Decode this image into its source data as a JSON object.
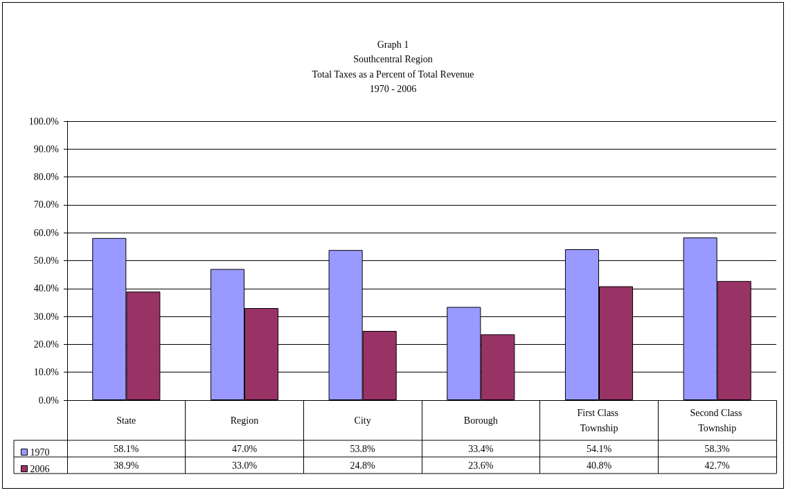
{
  "chart_data": {
    "type": "bar",
    "title": "Graph 1",
    "subtitle": "Southcentral Region\nTotal Taxes as a Percent of Total Revenue\n1970 - 2006",
    "categories": [
      "State",
      "Region",
      "City",
      "Borough",
      "First Class Township",
      "Second Class Township"
    ],
    "series": [
      {
        "name": "1970",
        "color": "#9999ff",
        "values": [
          58.1,
          47.0,
          53.8,
          33.4,
          54.1,
          58.3
        ],
        "value_labels": [
          "58.1%",
          "47.0%",
          "53.8%",
          "33.4%",
          "54.1%",
          "58.3%"
        ]
      },
      {
        "name": "2006",
        "color": "#993366",
        "values": [
          38.9,
          33.0,
          24.8,
          23.6,
          40.8,
          42.7
        ],
        "value_labels": [
          "38.9%",
          "33.0%",
          "24.8%",
          "23.6%",
          "40.8%",
          "42.7%"
        ]
      }
    ],
    "ylim": [
      0,
      100
    ],
    "yticks": [
      {
        "value": 0,
        "label": "0.0%"
      },
      {
        "value": 10,
        "label": "10.0%"
      },
      {
        "value": 20,
        "label": "20.0%"
      },
      {
        "value": 30,
        "label": "30.0%"
      },
      {
        "value": 40,
        "label": "40.0%"
      },
      {
        "value": 50,
        "label": "50.0%"
      },
      {
        "value": 60,
        "label": "60.0%"
      },
      {
        "value": 70,
        "label": "70.0%"
      },
      {
        "value": 80,
        "label": "80.0%"
      },
      {
        "value": 90,
        "label": "90.0%"
      },
      {
        "value": 100,
        "label": "100.0%"
      }
    ],
    "grid": "y",
    "legend": "bottom left"
  }
}
